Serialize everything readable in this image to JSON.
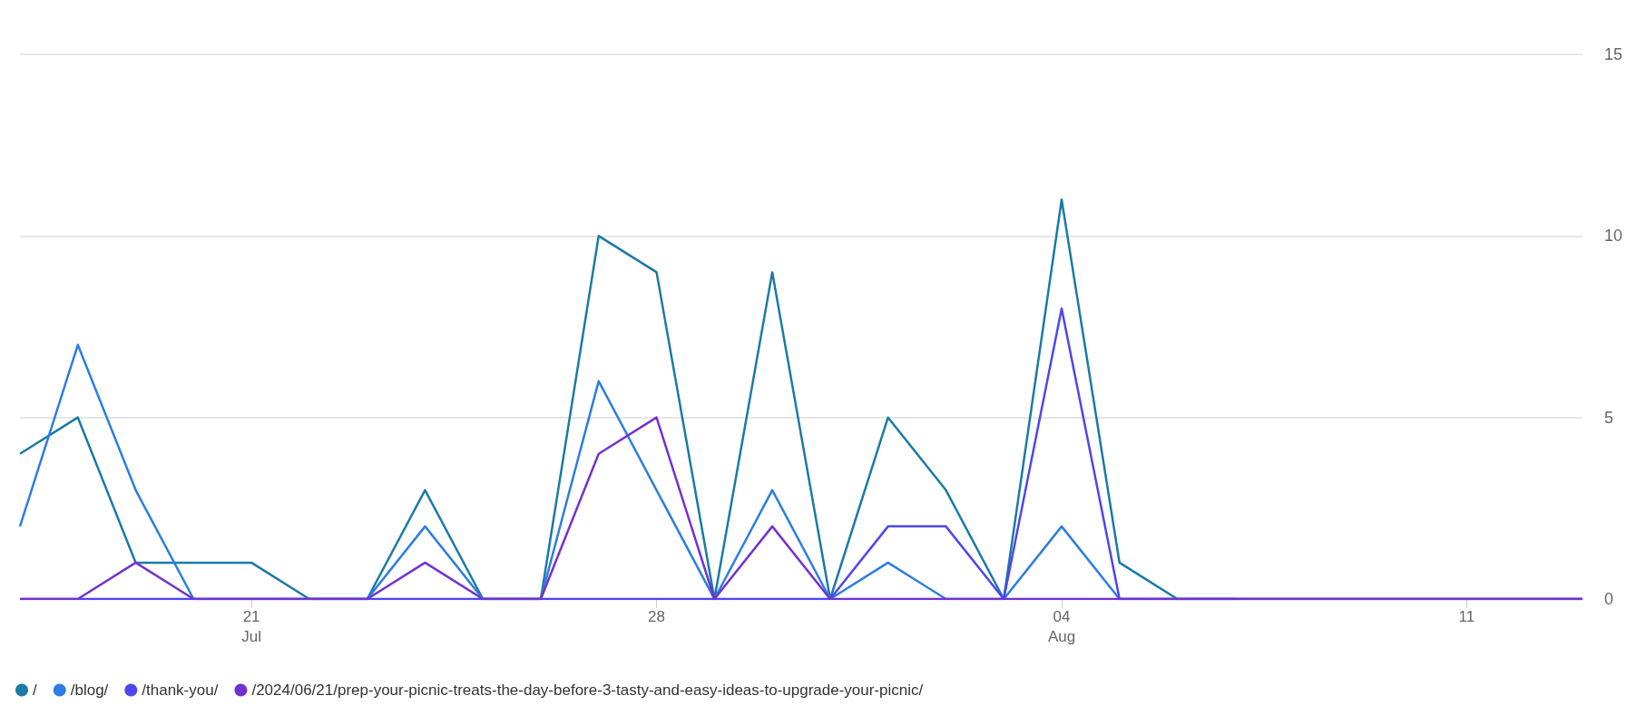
{
  "chart_data": {
    "type": "line",
    "x": [
      "--07-17",
      "--07-18",
      "--07-19",
      "--07-20",
      "--07-21",
      "--07-22",
      "--07-23",
      "--07-24",
      "--07-25",
      "--07-26",
      "--07-27",
      "--07-28",
      "--07-29",
      "--07-30",
      "--07-31",
      "--08-01",
      "--08-02",
      "--08-03",
      "--08-04",
      "--08-05",
      "--08-06",
      "--08-07",
      "--08-08",
      "--08-09",
      "--08-10",
      "--08-11",
      "--08-12",
      "--08-13"
    ],
    "series": [
      {
        "name": "/",
        "color": "#1a7aa8",
        "values": [
          4,
          5,
          1,
          1,
          1,
          0,
          0,
          3,
          0,
          0,
          10,
          9,
          0,
          9,
          0,
          5,
          3,
          0,
          11,
          1,
          0,
          0,
          0,
          0,
          0,
          0,
          0,
          0
        ]
      },
      {
        "name": "/blog/",
        "color": "#2b7de4",
        "values": [
          2,
          7,
          3,
          0,
          0,
          0,
          0,
          2,
          0,
          0,
          6,
          3,
          0,
          3,
          0,
          1,
          0,
          0,
          2,
          0,
          0,
          0,
          null,
          null,
          null,
          null,
          null,
          null
        ]
      },
      {
        "name": "/thank-you/",
        "color": "#4f46ee",
        "values": [
          0,
          0,
          0,
          0,
          0,
          0,
          0,
          0,
          0,
          0,
          0,
          0,
          0,
          0,
          0,
          2,
          2,
          0,
          8,
          0,
          0,
          0,
          0,
          0,
          0,
          0,
          0,
          0
        ]
      },
      {
        "name": "/2024/06/21/prep-your-picnic-treats-the-day-before-3-tasty-and-easy-ideas-to-upgrade-your-picnic/",
        "color": "#7431d0",
        "values": [
          0,
          0,
          1,
          0,
          0,
          0,
          0,
          1,
          0,
          0,
          4,
          5,
          0,
          2,
          0,
          0,
          0,
          0,
          0,
          0,
          0,
          0,
          0,
          0,
          0,
          0,
          0,
          0
        ]
      }
    ],
    "xlim": [
      "--07-17",
      "--08-13"
    ],
    "xticks": [
      {
        "value": "--07-21",
        "label": "21\nJul"
      },
      {
        "value": "--07-28",
        "label": "28"
      },
      {
        "value": "--08-04",
        "label": "04\nAug"
      },
      {
        "value": "--08-11",
        "label": "11"
      }
    ],
    "ylim": [
      0,
      15
    ],
    "yticks": [
      0,
      5,
      10,
      15
    ],
    "grid": "y",
    "legend": "bottom left",
    "marker": "none",
    "line_style": "solid"
  }
}
